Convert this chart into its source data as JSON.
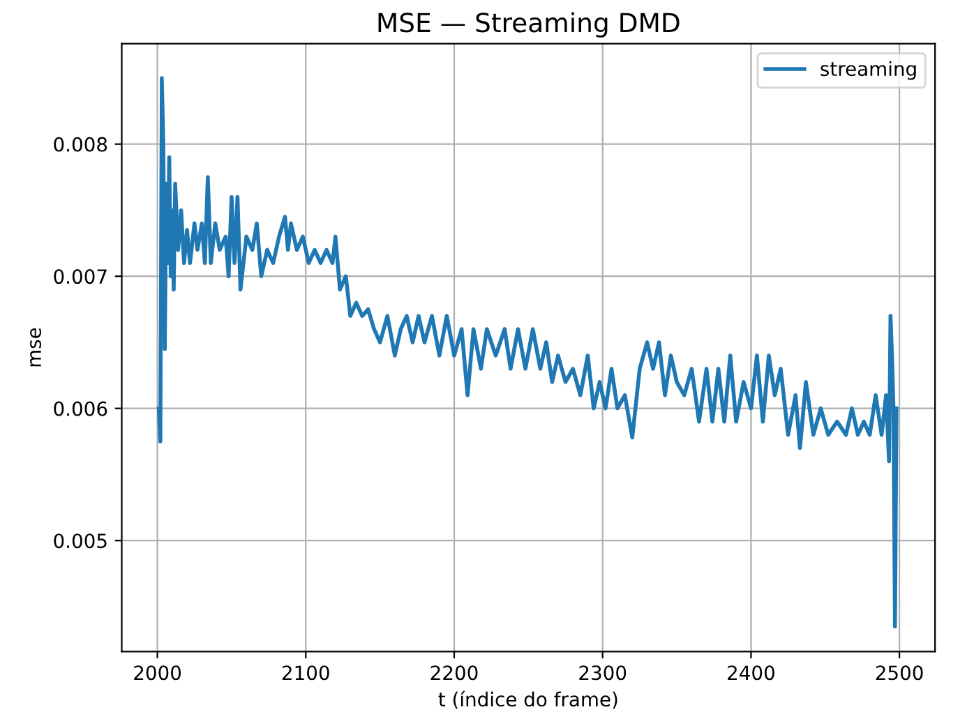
{
  "chart_data": {
    "type": "line",
    "title": "MSE — Streaming DMD",
    "xlabel": "t (índice do frame)",
    "ylabel": "mse",
    "xlim": [
      1976,
      2524
    ],
    "ylim": [
      0.00416,
      0.00876
    ],
    "xticks": [
      2000,
      2100,
      2200,
      2300,
      2400,
      2500
    ],
    "yticks": [
      0.005,
      0.006,
      0.007,
      0.008
    ],
    "grid": true,
    "legend": "upper right",
    "series": [
      {
        "name": "streaming",
        "color": "#1f77b4",
        "x": [
          2001,
          2002,
          2003,
          2004,
          2005,
          2006,
          2007,
          2008,
          2009,
          2010,
          2011,
          2012,
          2014,
          2016,
          2018,
          2020,
          2022,
          2025,
          2027,
          2030,
          2032,
          2034,
          2036,
          2039,
          2042,
          2046,
          2048,
          2050,
          2052,
          2054,
          2056,
          2060,
          2064,
          2067,
          2070,
          2074,
          2078,
          2082,
          2086,
          2088,
          2090,
          2094,
          2098,
          2102,
          2106,
          2110,
          2114,
          2118,
          2120,
          2123,
          2127,
          2130,
          2134,
          2138,
          2142,
          2146,
          2150,
          2155,
          2160,
          2164,
          2168,
          2172,
          2176,
          2180,
          2185,
          2190,
          2195,
          2200,
          2205,
          2209,
          2213,
          2218,
          2222,
          2228,
          2234,
          2238,
          2243,
          2248,
          2253,
          2258,
          2262,
          2266,
          2270,
          2275,
          2280,
          2285,
          2290,
          2294,
          2298,
          2302,
          2306,
          2310,
          2315,
          2320,
          2325,
          2330,
          2334,
          2338,
          2342,
          2346,
          2350,
          2355,
          2360,
          2365,
          2370,
          2374,
          2378,
          2382,
          2386,
          2390,
          2395,
          2400,
          2404,
          2408,
          2412,
          2416,
          2420,
          2425,
          2430,
          2433,
          2437,
          2442,
          2447,
          2452,
          2458,
          2464,
          2468,
          2472,
          2476,
          2480,
          2484,
          2488,
          2491,
          2493,
          2494,
          2495,
          2496,
          2497,
          2498
        ],
        "values": [
          0.006,
          0.00575,
          0.0085,
          0.008,
          0.00645,
          0.0077,
          0.0071,
          0.0079,
          0.007,
          0.0075,
          0.0069,
          0.0077,
          0.0072,
          0.0075,
          0.0071,
          0.00735,
          0.0071,
          0.0074,
          0.0072,
          0.0074,
          0.0071,
          0.00775,
          0.0071,
          0.0074,
          0.0072,
          0.0073,
          0.007,
          0.0076,
          0.0071,
          0.0076,
          0.0069,
          0.0073,
          0.0072,
          0.0074,
          0.007,
          0.0072,
          0.0071,
          0.0073,
          0.00745,
          0.0072,
          0.0074,
          0.0072,
          0.0073,
          0.0071,
          0.0072,
          0.0071,
          0.0072,
          0.0071,
          0.0073,
          0.0069,
          0.007,
          0.0067,
          0.0068,
          0.0067,
          0.00675,
          0.0066,
          0.0065,
          0.0067,
          0.0064,
          0.0066,
          0.0067,
          0.0065,
          0.0067,
          0.0065,
          0.0067,
          0.0064,
          0.0067,
          0.0064,
          0.0066,
          0.0061,
          0.0066,
          0.0063,
          0.0066,
          0.0064,
          0.0066,
          0.0063,
          0.0066,
          0.0063,
          0.0066,
          0.0063,
          0.0065,
          0.0062,
          0.0064,
          0.0062,
          0.0063,
          0.0061,
          0.0064,
          0.006,
          0.0062,
          0.006,
          0.0063,
          0.006,
          0.0061,
          0.00578,
          0.0063,
          0.0065,
          0.0063,
          0.0065,
          0.0061,
          0.0064,
          0.0062,
          0.0061,
          0.0063,
          0.0059,
          0.0063,
          0.0059,
          0.0063,
          0.0059,
          0.0064,
          0.0059,
          0.0062,
          0.006,
          0.0064,
          0.0059,
          0.0064,
          0.0061,
          0.0063,
          0.0058,
          0.0061,
          0.0057,
          0.0062,
          0.0058,
          0.006,
          0.0058,
          0.0059,
          0.0058,
          0.006,
          0.0058,
          0.0059,
          0.0058,
          0.0061,
          0.0058,
          0.0061,
          0.0056,
          0.0067,
          0.0064,
          0.006,
          0.00435,
          0.006
        ]
      }
    ]
  }
}
